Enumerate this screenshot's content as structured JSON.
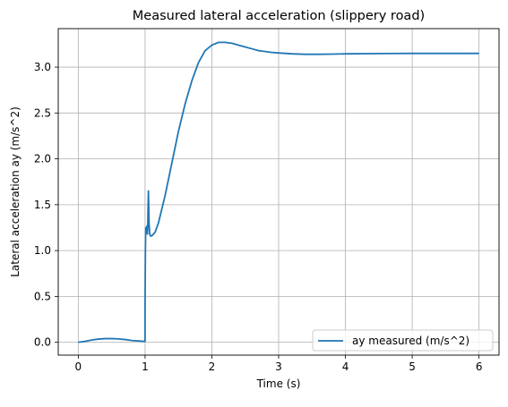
{
  "chart_data": {
    "type": "line",
    "title": "Measured lateral acceleration (slippery road)",
    "xlabel": "Time (s)",
    "ylabel": "Lateral acceleration ay (m/s^2)",
    "xlim": [
      -0.3,
      6.3
    ],
    "ylim": [
      -0.14,
      3.42
    ],
    "xticks": [
      0,
      1,
      2,
      3,
      4,
      5,
      6
    ],
    "xtick_labels": [
      "0",
      "1",
      "2",
      "3",
      "4",
      "5",
      "6"
    ],
    "yticks": [
      0.0,
      0.5,
      1.0,
      1.5,
      2.0,
      2.5,
      3.0
    ],
    "ytick_labels": [
      "0.0",
      "0.5",
      "1.0",
      "1.5",
      "2.0",
      "2.5",
      "3.0"
    ],
    "grid": true,
    "legend_position": "lower-right",
    "series": [
      {
        "name": "ay measured (m/s^2)",
        "color": "#1f77b4",
        "x": [
          0,
          0.1,
          0.2,
          0.3,
          0.4,
          0.5,
          0.6,
          0.7,
          0.8,
          0.9,
          1.0,
          1.0,
          1.005,
          1.01,
          1.015,
          1.02,
          1.03,
          1.035,
          1.04,
          1.05,
          1.06,
          1.07,
          1.08,
          1.1,
          1.15,
          1.2,
          1.3,
          1.4,
          1.5,
          1.6,
          1.7,
          1.8,
          1.9,
          2.0,
          2.1,
          2.2,
          2.3,
          2.4,
          2.5,
          2.6,
          2.7,
          2.8,
          2.9,
          3.0,
          3.2,
          3.4,
          3.6,
          3.8,
          4.0,
          4.5,
          5.0,
          5.5,
          6.0
        ],
        "y": [
          0.0,
          0.01,
          0.025,
          0.035,
          0.04,
          0.04,
          0.037,
          0.03,
          0.02,
          0.015,
          0.01,
          0.4,
          1.0,
          1.25,
          1.2,
          1.22,
          1.27,
          1.18,
          1.25,
          1.65,
          1.3,
          1.18,
          1.16,
          1.16,
          1.2,
          1.3,
          1.6,
          1.95,
          2.3,
          2.6,
          2.85,
          3.05,
          3.18,
          3.24,
          3.27,
          3.27,
          3.26,
          3.24,
          3.22,
          3.2,
          3.18,
          3.17,
          3.16,
          3.155,
          3.145,
          3.14,
          3.14,
          3.142,
          3.145,
          3.148,
          3.15,
          3.15,
          3.15
        ]
      }
    ]
  }
}
